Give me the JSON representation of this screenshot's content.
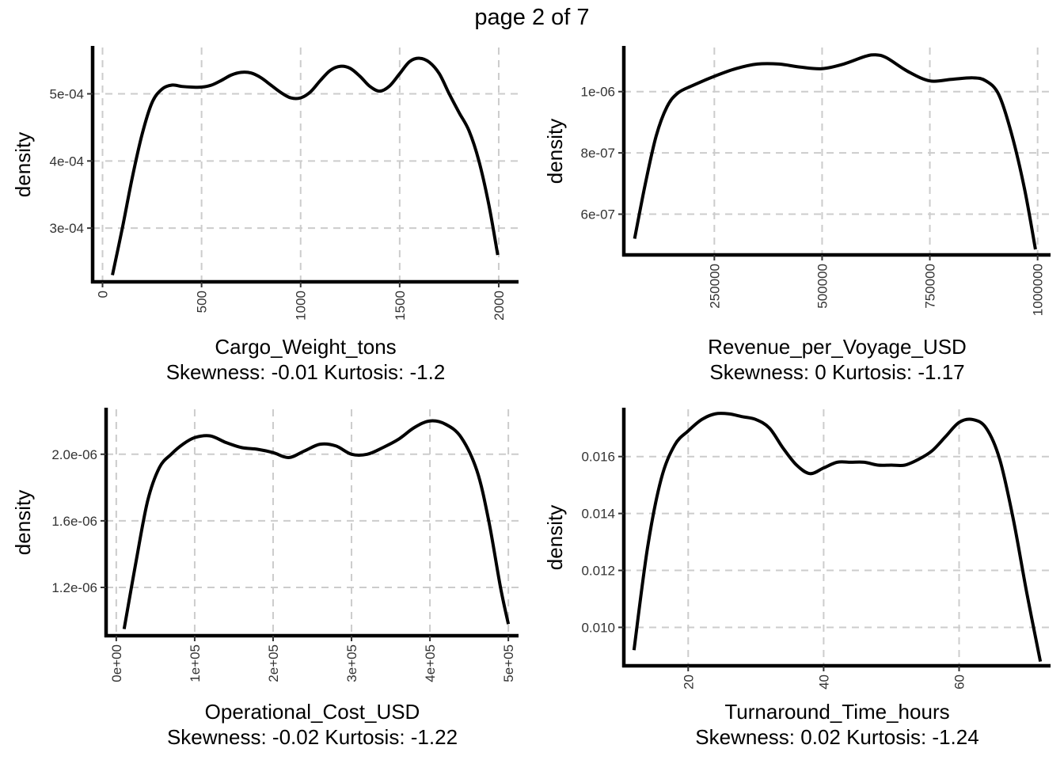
{
  "page_title": "page 2 of 7",
  "chart_data": [
    {
      "type": "line",
      "title": "",
      "xlabel": "Cargo_Weight_tons",
      "caption": "Skewness: -0.01 Kurtosis: -1.2",
      "ylabel": "density",
      "xlim": [
        -50,
        2100
      ],
      "ylim": [
        0.00022,
        0.000569
      ],
      "xticks": [
        0,
        500,
        1000,
        1500,
        2000
      ],
      "xtick_labels": [
        "0",
        "500",
        "1000",
        "1500",
        "2000"
      ],
      "yticks": [
        0.0003,
        0.0004,
        0.0005
      ],
      "ytick_labels": [
        "3e-04",
        "4e-04",
        "5e-04"
      ],
      "x": [
        50,
        100,
        150,
        200,
        250,
        300,
        350,
        400,
        450,
        500,
        550,
        600,
        650,
        700,
        750,
        800,
        850,
        900,
        950,
        1000,
        1050,
        1100,
        1150,
        1200,
        1250,
        1300,
        1350,
        1400,
        1450,
        1500,
        1550,
        1600,
        1650,
        1700,
        1750,
        1800,
        1850,
        1900,
        1950,
        1995
      ],
      "y": [
        0.00023,
        0.0003,
        0.000375,
        0.00044,
        0.000487,
        0.000507,
        0.000513,
        0.000511,
        0.00051,
        0.00051,
        0.000513,
        0.00052,
        0.000528,
        0.000532,
        0.000531,
        0.000524,
        0.000513,
        0.000502,
        0.000494,
        0.000494,
        0.000503,
        0.00052,
        0.000535,
        0.000541,
        0.000538,
        0.000526,
        0.000511,
        0.000504,
        0.000512,
        0.00053,
        0.000548,
        0.000553,
        0.000547,
        0.00053,
        0.0005,
        0.000472,
        0.000445,
        0.0004,
        0.000335,
        0.00026
      ]
    },
    {
      "type": "line",
      "title": "",
      "xlabel": "Revenue_per_Voyage_USD",
      "caption": "Skewness: 0 Kurtosis: -1.17",
      "ylabel": "density",
      "xlim": [
        40000,
        1030000
      ],
      "ylim": [
        4.67e-07,
        1.144e-06
      ],
      "xticks": [
        250000,
        500000,
        750000,
        1000000
      ],
      "xtick_labels": [
        "250000",
        "500000",
        "750000",
        "1000000"
      ],
      "yticks": [
        6e-07,
        8e-07,
        1e-06
      ],
      "ytick_labels": [
        "6e-07",
        "8e-07",
        "1e-06"
      ],
      "x": [
        65000,
        90000,
        115000,
        140000,
        165000,
        200000,
        250000,
        300000,
        350000,
        400000,
        450000,
        500000,
        550000,
        600000,
        625000,
        650000,
        700000,
        750000,
        800000,
        850000,
        880000,
        910000,
        940000,
        970000,
        995000
      ],
      "y": [
        5.2e-07,
        7e-07,
        8.55e-07,
        9.5e-07,
        9.95e-07,
        1.02e-06,
        1.05e-06,
        1.075e-06,
        1.09e-06,
        1.09e-06,
        1.08e-06,
        1.075e-06,
        1.09e-06,
        1.115e-06,
        1.12e-06,
        1.11e-06,
        1.065e-06,
        1.035e-06,
        1.04e-06,
        1.045e-06,
        1.035e-06,
        9.9e-07,
        8.6e-07,
        6.8e-07,
        4.85e-07
      ]
    },
    {
      "type": "line",
      "title": "",
      "xlabel": "Operational_Cost_USD",
      "caption": "Skewness: -0.02 Kurtosis: -1.22",
      "ylabel": "density",
      "xlim": [
        -13000,
        513000
      ],
      "ylim": [
        9.1e-07,
        2.27e-06
      ],
      "xticks": [
        0,
        100000,
        200000,
        300000,
        400000,
        500000
      ],
      "xtick_labels": [
        "0e+00",
        "1e+05",
        "2e+05",
        "3e+05",
        "4e+05",
        "5e+05"
      ],
      "yticks": [
        1.2e-06,
        1.6e-06,
        2e-06
      ],
      "ytick_labels": [
        "1.2e-06",
        "1.6e-06",
        "2.0e-06"
      ],
      "x": [
        10000,
        25000,
        40000,
        55000,
        70000,
        85000,
        100000,
        120000,
        140000,
        160000,
        180000,
        200000,
        220000,
        240000,
        260000,
        280000,
        300000,
        320000,
        340000,
        360000,
        380000,
        400000,
        420000,
        440000,
        460000,
        475000,
        490000,
        500000
      ],
      "y": [
        9.5e-07,
        1.35e-06,
        1.72e-06,
        1.92e-06,
        2e-06,
        2.06e-06,
        2.1e-06,
        2.11e-06,
        2.07e-06,
        2.04e-06,
        2.03e-06,
        2.01e-06,
        1.98e-06,
        2.02e-06,
        2.06e-06,
        2.05e-06,
        2e-06,
        2e-06,
        2.04e-06,
        2.09e-06,
        2.16e-06,
        2.2e-06,
        2.18e-06,
        2.1e-06,
        1.9e-06,
        1.6e-06,
        1.2e-06,
        9.8e-07
      ]
    },
    {
      "type": "line",
      "title": "",
      "xlabel": "Turnaround_Time_hours",
      "caption": "Skewness: 0.02 Kurtosis: -1.24",
      "ylabel": "density",
      "xlim": [
        10.5,
        73.5
      ],
      "ylim": [
        0.00865,
        0.01766
      ],
      "xticks": [
        20,
        40,
        60
      ],
      "xtick_labels": [
        "20",
        "40",
        "60"
      ],
      "yticks": [
        0.01,
        0.012,
        0.014,
        0.016
      ],
      "ytick_labels": [
        "0.010",
        "0.012",
        "0.014",
        "0.016"
      ],
      "x": [
        12,
        14,
        16,
        18,
        20,
        22,
        24,
        26,
        28,
        30,
        32,
        34,
        36,
        38,
        40,
        42,
        44,
        46,
        48,
        50,
        52,
        54,
        56,
        58,
        60,
        62,
        64,
        66,
        68,
        70,
        72
      ],
      "y": [
        0.0092,
        0.0128,
        0.0152,
        0.0164,
        0.0169,
        0.0173,
        0.0175,
        0.0175,
        0.0174,
        0.0173,
        0.017,
        0.0163,
        0.0157,
        0.0154,
        0.0156,
        0.0158,
        0.0158,
        0.0158,
        0.0157,
        0.0157,
        0.0157,
        0.0159,
        0.0162,
        0.0167,
        0.0172,
        0.0173,
        0.017,
        0.0159,
        0.0138,
        0.0112,
        0.0088
      ]
    }
  ]
}
